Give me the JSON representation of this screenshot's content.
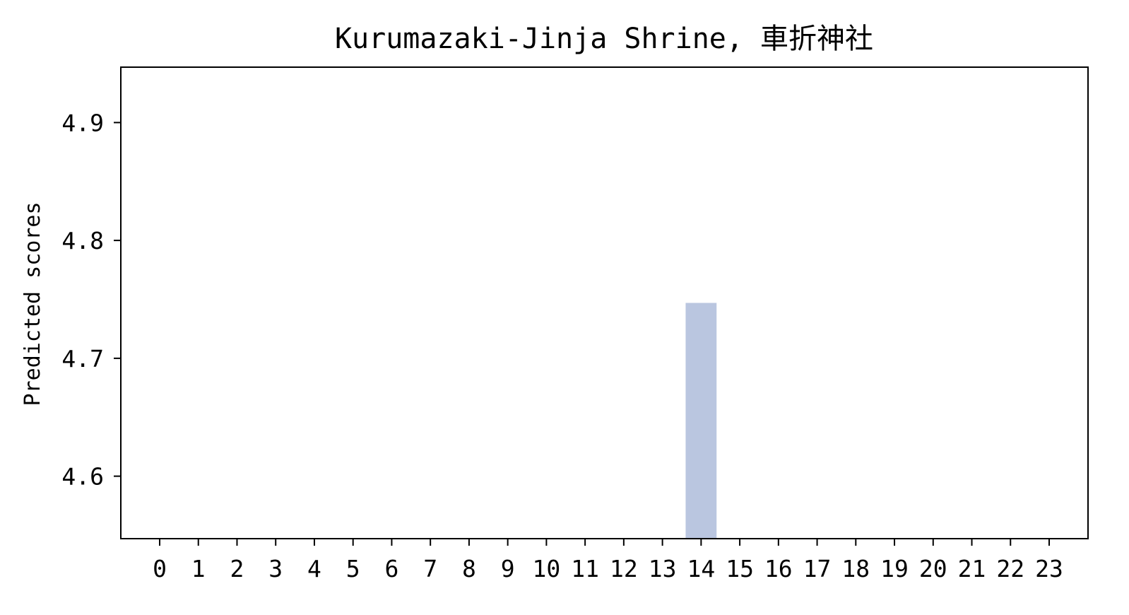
{
  "chart_data": {
    "type": "bar",
    "title": "Kurumazaki-Jinja Shrine, 車折神社",
    "xlabel": "",
    "ylabel": "Predicted scores",
    "categories": [
      "0",
      "1",
      "2",
      "3",
      "4",
      "5",
      "6",
      "7",
      "8",
      "9",
      "10",
      "11",
      "12",
      "13",
      "14",
      "15",
      "16",
      "17",
      "18",
      "19",
      "20",
      "21",
      "22",
      "23"
    ],
    "values": [
      null,
      null,
      null,
      null,
      null,
      null,
      null,
      null,
      null,
      null,
      null,
      null,
      null,
      null,
      4.747,
      null,
      null,
      null,
      null,
      null,
      null,
      null,
      null,
      null
    ],
    "ylim": [
      4.547,
      4.947
    ],
    "yticks": [
      "4.6",
      "4.7",
      "4.8",
      "4.9"
    ],
    "bar_color": "#bac6e0",
    "grid": false,
    "legend": "none"
  }
}
